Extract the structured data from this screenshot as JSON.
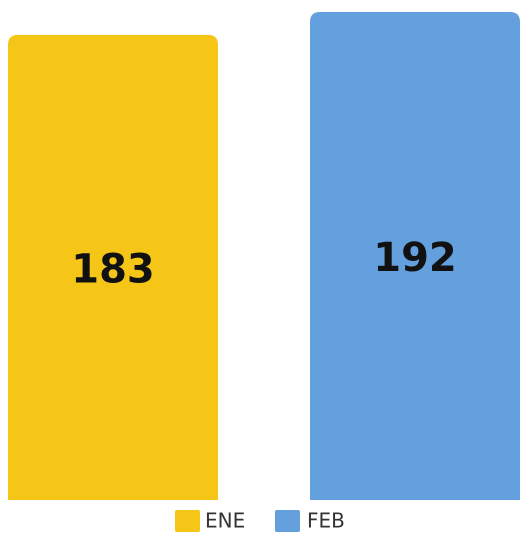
{
  "chart_data": {
    "type": "bar",
    "categories": [
      "ENE",
      "FEB"
    ],
    "values": [
      183,
      192
    ],
    "colors": [
      "#f5c518",
      "#64a0de"
    ]
  }
}
